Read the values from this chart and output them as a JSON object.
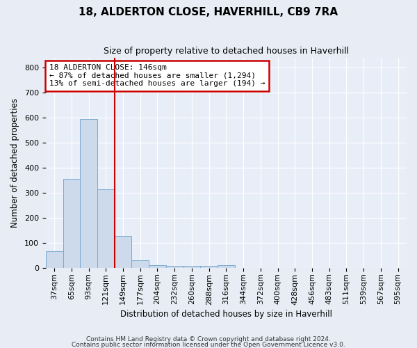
{
  "title": "18, ALDERTON CLOSE, HAVERHILL, CB9 7RA",
  "subtitle": "Size of property relative to detached houses in Haverhill",
  "xlabel": "Distribution of detached houses by size in Haverhill",
  "ylabel": "Number of detached properties",
  "bar_color": "#cddaeb",
  "bar_edge_color": "#7aaace",
  "vline_color": "#cc0000",
  "annotation_line1": "18 ALDERTON CLOSE: 146sqm",
  "annotation_line2": "← 87% of detached houses are smaller (1,294)",
  "annotation_line3": "13% of semi-detached houses are larger (194) →",
  "categories": [
    "37sqm",
    "65sqm",
    "93sqm",
    "121sqm",
    "149sqm",
    "177sqm",
    "204sqm",
    "232sqm",
    "260sqm",
    "288sqm",
    "316sqm",
    "344sqm",
    "372sqm",
    "400sqm",
    "428sqm",
    "456sqm",
    "483sqm",
    "511sqm",
    "539sqm",
    "567sqm",
    "595sqm"
  ],
  "values": [
    65,
    355,
    595,
    315,
    128,
    30,
    10,
    8,
    8,
    8,
    10,
    0,
    0,
    0,
    0,
    0,
    0,
    0,
    0,
    0,
    0
  ],
  "ylim": [
    0,
    840
  ],
  "yticks": [
    0,
    100,
    200,
    300,
    400,
    500,
    600,
    700,
    800
  ],
  "fig_bg_color": "#e8edf5",
  "ax_bg_color": "#e8eef8",
  "grid_color": "#ffffff",
  "footer_line1": "Contains HM Land Registry data © Crown copyright and database right 2024.",
  "footer_line2": "Contains public sector information licensed under the Open Government Licence v3.0."
}
